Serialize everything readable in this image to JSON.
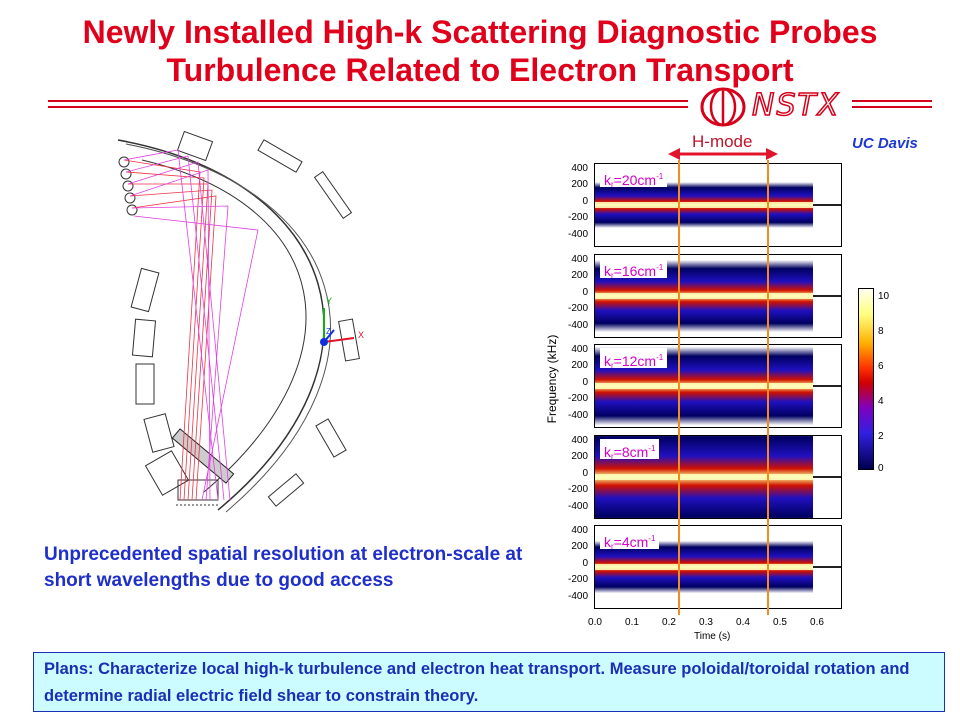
{
  "title": {
    "line1": "Newly Installed High-k Scattering Diagnostic Probes",
    "line2": "Turbulence Related to Electron Transport"
  },
  "logo": {
    "text": "NSTX",
    "icon": "nstx-logo-icon"
  },
  "affiliation": "UC Davis",
  "figure": {
    "hmode_label": "H-mode",
    "ylabel": "Frequency (kHz)",
    "xlabel": "Time (s)",
    "yticks": [
      "400",
      "200",
      "0",
      "-200",
      "-400"
    ],
    "xticks": [
      "0.0",
      "0.1",
      "0.2",
      "0.3",
      "0.4",
      "0.5",
      "0.6"
    ],
    "colorbar_ticks": [
      "10",
      "8",
      "6",
      "4",
      "2",
      "0"
    ],
    "panels": [
      {
        "k_prefix": "k",
        "k_sub": "r",
        "k_value": "=20cm",
        "k_sup": "-1"
      },
      {
        "k_prefix": "k",
        "k_sub": "r",
        "k_value": "=16cm",
        "k_sup": "-1"
      },
      {
        "k_prefix": "k",
        "k_sub": "r",
        "k_value": "=12cm",
        "k_sup": "-1"
      },
      {
        "k_prefix": "k",
        "k_sub": "r",
        "k_value": "=8cm",
        "k_sup": "-1"
      },
      {
        "k_prefix": "k",
        "k_sub": "r",
        "k_value": "=4cm",
        "k_sup": "-1"
      }
    ],
    "colors": {
      "hmode_marker": "#f28c1c",
      "arrow": "#e0142a"
    }
  },
  "geometry_axes": {
    "y": "Y",
    "z": "Z",
    "x": "X"
  },
  "description": "Unprecedented spatial resolution at electron-scale at short wavelengths due to good access",
  "plans": "Plans: Characterize local high-k turbulence and electron heat transport.  Measure poloidal/toroidal rotation and determine radial electric field shear to constrain theory.",
  "colors": {
    "title": "#e0001b",
    "body_text": "#1f2fc9",
    "plans_bg": "#ccfcff"
  }
}
